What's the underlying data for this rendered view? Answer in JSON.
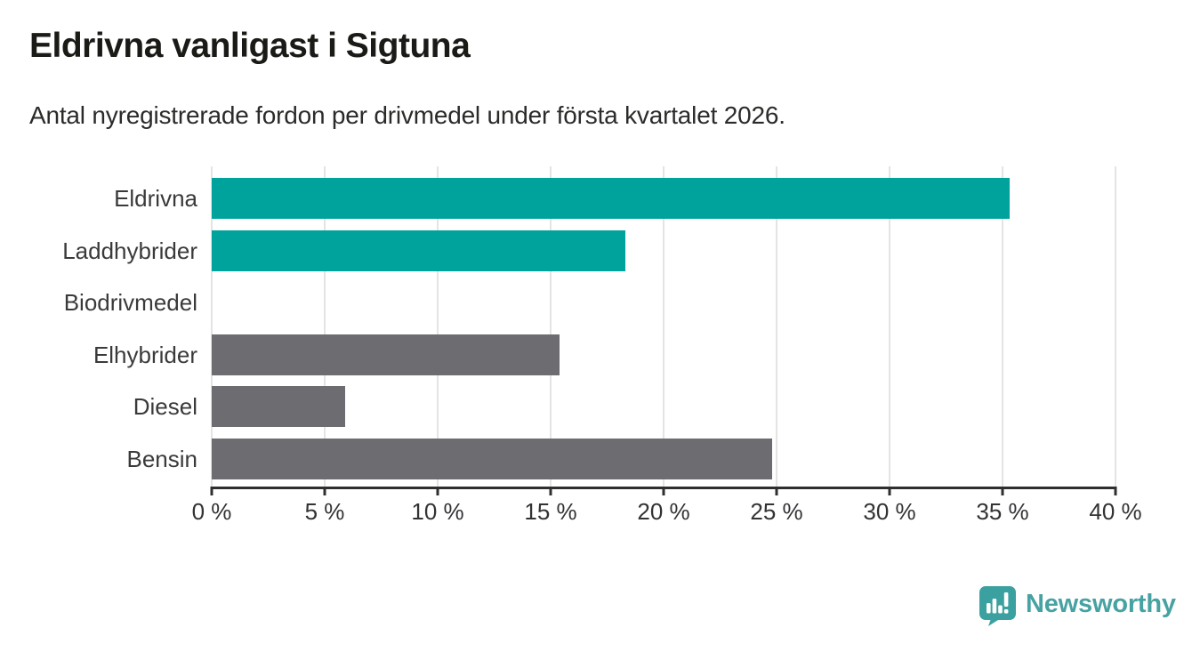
{
  "header": {
    "title": "Eldrivna vanligast i Sigtuna",
    "subtitle": "Antal nyregistrerade fordon per drivmedel under första kvartalet 2026."
  },
  "chart_data": {
    "type": "bar",
    "orientation": "horizontal",
    "title": "Eldrivna vanligast i Sigtuna",
    "subtitle": "Antal nyregistrerade fordon per drivmedel under första kvartalet 2026.",
    "categories": [
      "Eldrivna",
      "Laddhybrider",
      "Biodrivmedel",
      "Elhybrider",
      "Diesel",
      "Bensin"
    ],
    "values": [
      35.3,
      18.3,
      0,
      15.4,
      5.9,
      24.8
    ],
    "unit": "%",
    "xlim": [
      0,
      40
    ],
    "x_ticks": [
      0,
      5,
      10,
      15,
      20,
      25,
      30,
      35,
      40
    ],
    "x_tick_labels": [
      "0 %",
      "5 %",
      "10 %",
      "15 %",
      "20 %",
      "25 %",
      "30 %",
      "35 %",
      "40 %"
    ],
    "bar_colors": [
      "#00a39b",
      "#00a39b",
      "#6c6c71",
      "#6c6c71",
      "#6c6c71",
      "#6c6c71"
    ],
    "grid": true,
    "legend": "none",
    "highlight_color": "#00a39b",
    "default_color": "#6c6c71"
  },
  "footer": {
    "logo_text": "Newsworthy",
    "logo_icon": "newsworthy-speech-bubble-barchart-icon",
    "brand_color": "#3ba1a0"
  }
}
